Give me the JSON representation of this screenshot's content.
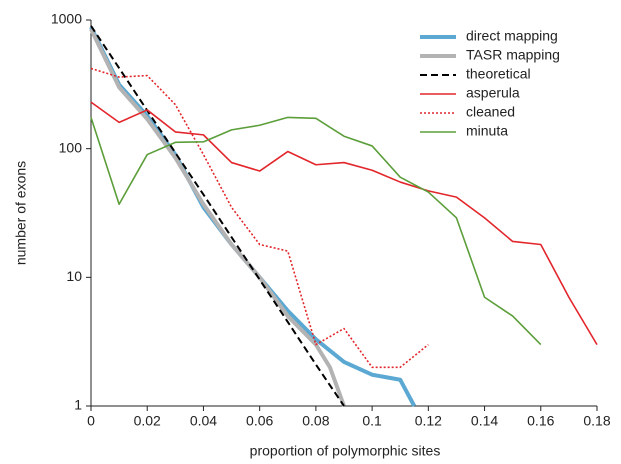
{
  "chart_data": {
    "type": "line",
    "xlabel": "proportion of polymorphic sites",
    "ylabel": "number of exons",
    "xlim": [
      0,
      0.18
    ],
    "xticks": [
      0,
      0.02,
      0.04,
      0.06,
      0.08,
      0.1,
      0.12,
      0.14,
      0.16,
      0.18
    ],
    "ylim": [
      1,
      1000
    ],
    "yticks": [
      1,
      10,
      100,
      1000
    ],
    "log_y": true,
    "grid": false,
    "legend": "upper right",
    "series": [
      {
        "name": "direct mapping",
        "color": "#5ba8d2",
        "width": 4,
        "style": "solid",
        "x": [
          0,
          0.01,
          0.02,
          0.03,
          0.04,
          0.05,
          0.06,
          0.07,
          0.08,
          0.09,
          0.1,
          0.11,
          0.115
        ],
        "values": [
          880,
          315,
          180,
          90,
          35,
          18,
          10,
          5.5,
          3.3,
          2.2,
          1.75,
          1.6,
          1
        ]
      },
      {
        "name": "TASR mapping",
        "color": "#b3b3b3",
        "width": 4,
        "style": "solid",
        "x": [
          0,
          0.01,
          0.02,
          0.03,
          0.04,
          0.05,
          0.06,
          0.07,
          0.08,
          0.085,
          0.09
        ],
        "values": [
          850,
          300,
          170,
          85,
          37,
          18,
          10,
          5,
          3,
          2,
          1
        ]
      },
      {
        "name": "theoretical",
        "color": "#000000",
        "width": 2,
        "style": "dashed",
        "x": [
          0,
          0.01,
          0.02,
          0.03,
          0.04,
          0.05,
          0.06,
          0.07,
          0.08,
          0.09
        ],
        "values": [
          900,
          423,
          198,
          93,
          44,
          20.5,
          9.6,
          4.5,
          2.1,
          1
        ]
      },
      {
        "name": "asperula",
        "color": "#e2262b",
        "width": 1.6,
        "style": "solid",
        "x": [
          0,
          0.01,
          0.02,
          0.03,
          0.04,
          0.05,
          0.06,
          0.07,
          0.08,
          0.09,
          0.1,
          0.11,
          0.12,
          0.13,
          0.14,
          0.15,
          0.16,
          0.17,
          0.18
        ],
        "values": [
          230,
          160,
          200,
          135,
          128,
          78,
          67,
          95,
          75,
          78,
          68,
          55,
          47,
          42,
          29,
          19,
          18,
          7,
          3
        ]
      },
      {
        "name": "cleaned",
        "color": "#e2262b",
        "width": 1.6,
        "style": "dotted",
        "x": [
          0,
          0.01,
          0.02,
          0.03,
          0.04,
          0.05,
          0.06,
          0.07,
          0.08,
          0.09,
          0.1,
          0.11,
          0.12
        ],
        "values": [
          420,
          360,
          370,
          220,
          90,
          35,
          18,
          16,
          3,
          4,
          2,
          2,
          3
        ]
      },
      {
        "name": "minuta",
        "color": "#5c9e3a",
        "width": 1.6,
        "style": "solid",
        "x": [
          0,
          0.01,
          0.02,
          0.03,
          0.04,
          0.05,
          0.06,
          0.07,
          0.08,
          0.09,
          0.1,
          0.11,
          0.12,
          0.13,
          0.14,
          0.15,
          0.16
        ],
        "values": [
          175,
          37,
          90,
          112,
          113,
          140,
          152,
          175,
          172,
          125,
          105,
          60,
          46,
          29,
          7,
          5,
          3
        ]
      }
    ]
  }
}
